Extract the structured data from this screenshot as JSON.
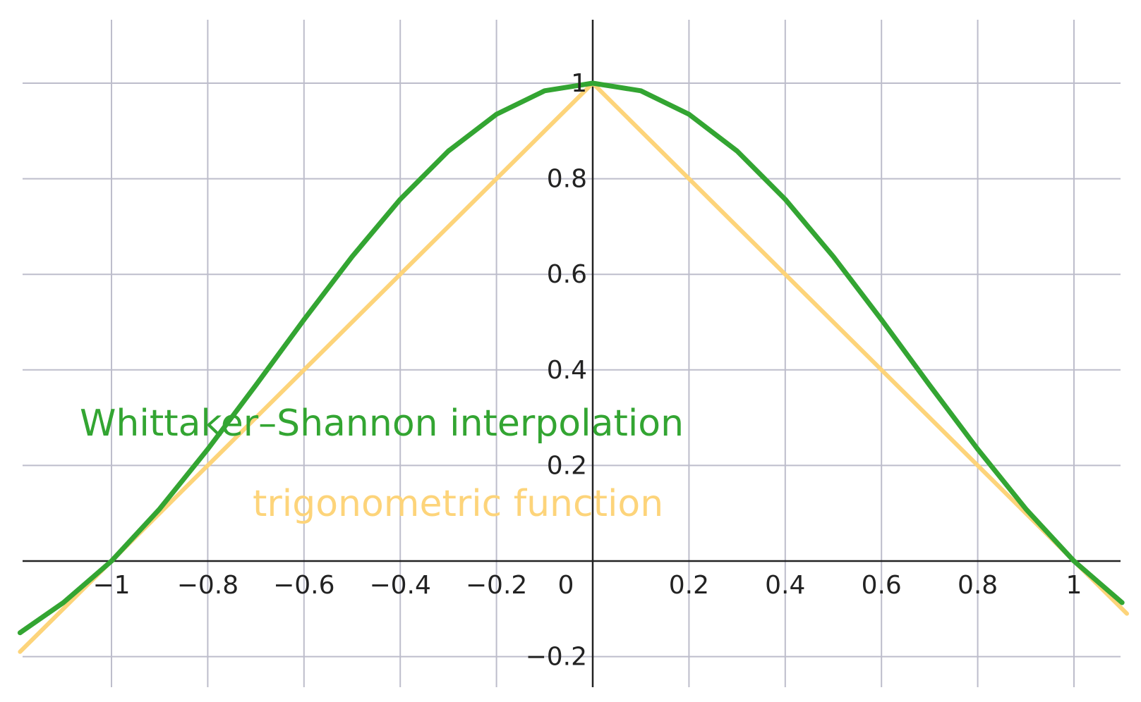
{
  "chart_data": {
    "type": "line",
    "xlim": [
      -1.19,
      1.11
    ],
    "ylim": [
      -0.27,
      1.14
    ],
    "grid": true,
    "grid_color": "#bdbdcb",
    "axis_color": "#222222",
    "x_ticks": [
      -1,
      -0.8,
      -0.6,
      -0.4,
      -0.2,
      0,
      0.2,
      0.4,
      0.6,
      0.8,
      1
    ],
    "x_tick_labels": [
      "−1",
      "−0.8",
      "−0.6",
      "−0.4",
      "−0.2",
      "0",
      "0.2",
      "0.4",
      "0.6",
      "0.8",
      "1"
    ],
    "y_ticks": [
      -0.2,
      0.2,
      0.4,
      0.6,
      0.8,
      1
    ],
    "y_tick_labels": [
      "−0.2",
      "0.2",
      "0.4",
      "0.6",
      "0.8",
      "1"
    ],
    "series": [
      {
        "name": "Whittaker–Shannon interpolation",
        "color": "#33a532",
        "x": [
          -1.19,
          -1.1,
          -1.0,
          -0.9,
          -0.8,
          -0.7,
          -0.6,
          -0.5,
          -0.4,
          -0.3,
          -0.2,
          -0.1,
          0,
          0.1,
          0.2,
          0.3,
          0.4,
          0.5,
          0.6,
          0.7,
          0.8,
          0.9,
          1.0,
          1.1
        ],
        "y": [
          -0.15,
          -0.087,
          0,
          0.109,
          0.234,
          0.368,
          0.505,
          0.637,
          0.757,
          0.858,
          0.935,
          0.984,
          1,
          0.984,
          0.935,
          0.858,
          0.757,
          0.637,
          0.505,
          0.368,
          0.234,
          0.109,
          0,
          -0.087
        ]
      },
      {
        "name": "trigonometric function",
        "color": "#fdd47a",
        "x": [
          -1.19,
          -1.0,
          0,
          1.0,
          1.11
        ],
        "y": [
          -0.19,
          0,
          1,
          0,
          -0.11
        ]
      }
    ]
  }
}
